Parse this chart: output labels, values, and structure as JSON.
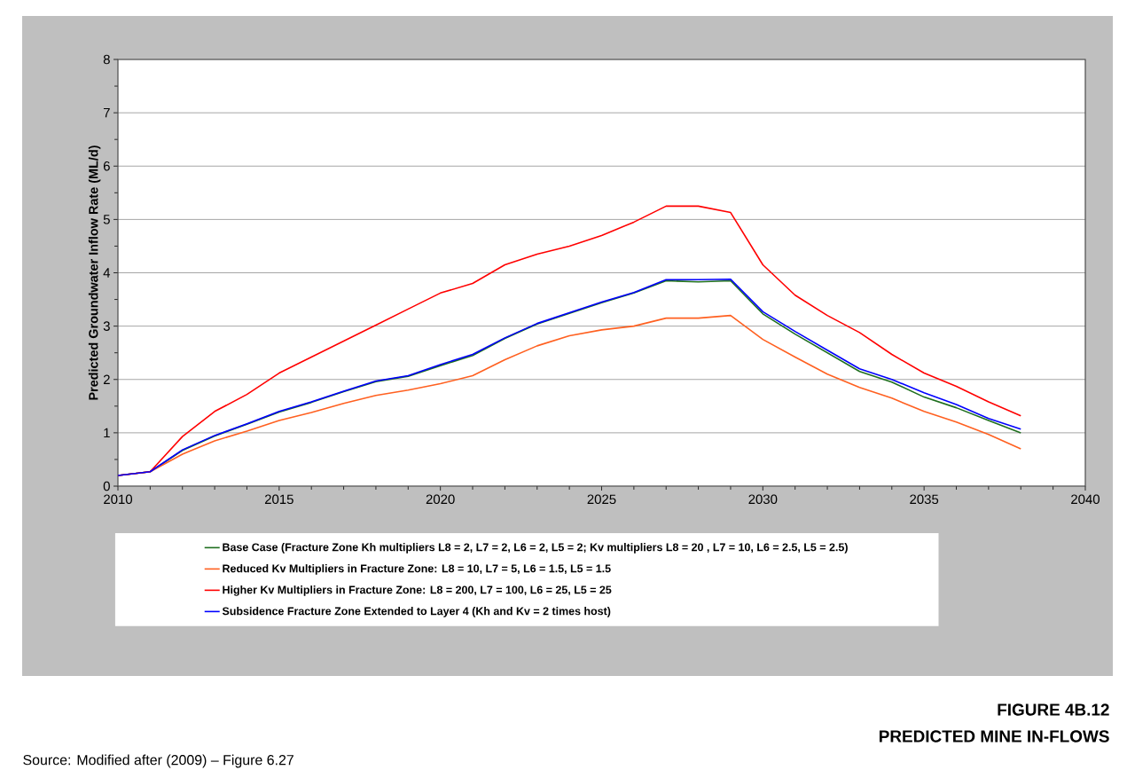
{
  "chart_data": {
    "type": "line",
    "title": "FIGURE 4B.12",
    "subtitle": "PREDICTED MINE IN-FLOWS",
    "ylabel": "Predicted Groundwater Inflow Rate (ML/d)",
    "annotations": [
      "Source: Modified after (2009) – Figure 6.27"
    ],
    "x": [
      2010,
      2011,
      2012,
      2013,
      2014,
      2015,
      2016,
      2017,
      2018,
      2019,
      2020,
      2021,
      2022,
      2023,
      2024,
      2025,
      2026,
      2027,
      2028,
      2029,
      2030,
      2031,
      2032,
      2033,
      2034,
      2035,
      2036,
      2037,
      2038
    ],
    "series": [
      {
        "name": "Base Case (Fracture Zone Kh multipliers L8 = 2, L7 = 2, L6 = 2, L5 = 2;  Kv multipliers L8 = 20 , L7 = 10, L6 = 2.5, L5 = 2.5)",
        "color": "#1e6e1e",
        "values": [
          0.2,
          0.27,
          0.67,
          0.94,
          1.16,
          1.39,
          1.57,
          1.77,
          1.96,
          2.06,
          2.26,
          2.45,
          2.77,
          3.04,
          3.24,
          3.44,
          3.62,
          3.85,
          3.83,
          3.85,
          3.23,
          2.85,
          2.5,
          2.15,
          1.95,
          1.67,
          1.47,
          1.23,
          1.0
        ]
      },
      {
        "name": "Reduced Kv Multipliers in Fracture Zone: L8 = 10, L7 = 5, L6 = 1.5, L5 = 1.5",
        "color": "#ff6020",
        "values": [
          0.2,
          0.27,
          0.6,
          0.85,
          1.03,
          1.23,
          1.38,
          1.55,
          1.7,
          1.8,
          1.92,
          2.07,
          2.37,
          2.63,
          2.82,
          2.93,
          3.0,
          3.15,
          3.15,
          3.2,
          2.75,
          2.42,
          2.1,
          1.85,
          1.65,
          1.4,
          1.2,
          0.97,
          0.7
        ]
      },
      {
        "name": "Higher Kv Multipliers in Fracture Zone: L8 = 200, L7 = 100, L6 = 25, L5 = 25",
        "color": "#ff0000",
        "values": [
          0.2,
          0.27,
          0.93,
          1.4,
          1.72,
          2.12,
          2.42,
          2.72,
          3.02,
          3.32,
          3.62,
          3.8,
          4.15,
          4.35,
          4.5,
          4.7,
          4.95,
          5.25,
          5.25,
          5.13,
          4.15,
          3.58,
          3.2,
          2.88,
          2.47,
          2.12,
          1.87,
          1.58,
          1.32
        ]
      },
      {
        "name": "Subsidence Fracture Zone Extended to Layer 4 (Kh and Kv = 2 times host)",
        "color": "#0000ff",
        "values": [
          0.2,
          0.27,
          0.68,
          0.95,
          1.17,
          1.4,
          1.58,
          1.78,
          1.97,
          2.07,
          2.28,
          2.47,
          2.78,
          3.05,
          3.25,
          3.45,
          3.63,
          3.87,
          3.87,
          3.88,
          3.27,
          2.9,
          2.55,
          2.2,
          2.0,
          1.75,
          1.53,
          1.27,
          1.07
        ]
      }
    ],
    "xlim": [
      2010,
      2040
    ],
    "ylim": [
      0,
      8
    ],
    "xticks": [
      2010,
      2015,
      2020,
      2025,
      2030,
      2035,
      2040
    ],
    "yticks": [
      0,
      1,
      2,
      3,
      4,
      5,
      6,
      7,
      8
    ],
    "grid": "y",
    "legend": "bottom"
  }
}
